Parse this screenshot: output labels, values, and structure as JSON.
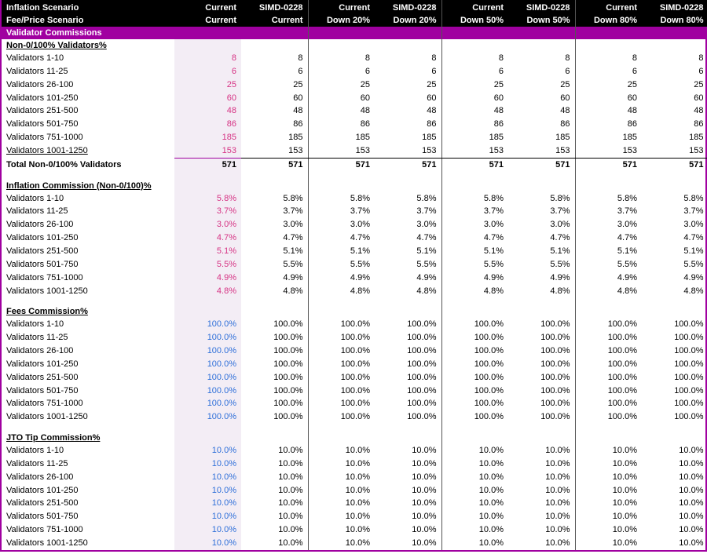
{
  "header": {
    "row1_label": "Inflation Scenario",
    "row2_label": "Fee/Price Scenario",
    "cols_top": [
      "Current",
      "SIMD-0228",
      "Current",
      "SIMD-0228",
      "Current",
      "SIMD-0228",
      "Current",
      "SIMD-0228"
    ],
    "cols_bot": [
      "Current",
      "Current",
      "Down 20%",
      "Down 20%",
      "Down 50%",
      "Down 50%",
      "Down 80%",
      "Down 80%"
    ]
  },
  "banner": "Validator Commissions",
  "validator_labels": [
    "Validators 1-10",
    "Validators 11-25",
    "Validators 26-100",
    "Validators 101-250",
    "Validators 251-500",
    "Validators 501-750",
    "Validators 751-1000",
    "Validators 1001-1250"
  ],
  "sections": [
    {
      "title": "Non-0/100% Validators%",
      "first_col_style": "pink",
      "total_label": "Total Non-0/100% Validators",
      "rows": [
        [
          8,
          8,
          8,
          8,
          8,
          8,
          8,
          8
        ],
        [
          6,
          6,
          6,
          6,
          6,
          6,
          6,
          6
        ],
        [
          25,
          25,
          25,
          25,
          25,
          25,
          25,
          25
        ],
        [
          60,
          60,
          60,
          60,
          60,
          60,
          60,
          60
        ],
        [
          48,
          48,
          48,
          48,
          48,
          48,
          48,
          48
        ],
        [
          86,
          86,
          86,
          86,
          86,
          86,
          86,
          86
        ],
        [
          185,
          185,
          185,
          185,
          185,
          185,
          185,
          185
        ],
        [
          153,
          153,
          153,
          153,
          153,
          153,
          153,
          153
        ]
      ],
      "totals": [
        571,
        571,
        571,
        571,
        571,
        571,
        571,
        571
      ]
    },
    {
      "title": "Inflation Commission (Non-0/100)%",
      "first_col_style": "pink",
      "suffix": "%",
      "decimals": 1,
      "rows": [
        [
          5.8,
          5.8,
          5.8,
          5.8,
          5.8,
          5.8,
          5.8,
          5.8
        ],
        [
          3.7,
          3.7,
          3.7,
          3.7,
          3.7,
          3.7,
          3.7,
          3.7
        ],
        [
          3.0,
          3.0,
          3.0,
          3.0,
          3.0,
          3.0,
          3.0,
          3.0
        ],
        [
          4.7,
          4.7,
          4.7,
          4.7,
          4.7,
          4.7,
          4.7,
          4.7
        ],
        [
          5.1,
          5.1,
          5.1,
          5.1,
          5.1,
          5.1,
          5.1,
          5.1
        ],
        [
          5.5,
          5.5,
          5.5,
          5.5,
          5.5,
          5.5,
          5.5,
          5.5
        ],
        [
          4.9,
          4.9,
          4.9,
          4.9,
          4.9,
          4.9,
          4.9,
          4.9
        ],
        [
          4.8,
          4.8,
          4.8,
          4.8,
          4.8,
          4.8,
          4.8,
          4.8
        ]
      ]
    },
    {
      "title": "Fees Commission%",
      "first_col_style": "blue",
      "suffix": "%",
      "decimals": 1,
      "rows": [
        [
          100,
          100,
          100,
          100,
          100,
          100,
          100,
          100
        ],
        [
          100,
          100,
          100,
          100,
          100,
          100,
          100,
          100
        ],
        [
          100,
          100,
          100,
          100,
          100,
          100,
          100,
          100
        ],
        [
          100,
          100,
          100,
          100,
          100,
          100,
          100,
          100
        ],
        [
          100,
          100,
          100,
          100,
          100,
          100,
          100,
          100
        ],
        [
          100,
          100,
          100,
          100,
          100,
          100,
          100,
          100
        ],
        [
          100,
          100,
          100,
          100,
          100,
          100,
          100,
          100
        ],
        [
          100,
          100,
          100,
          100,
          100,
          100,
          100,
          100
        ]
      ]
    },
    {
      "title": "JTO Tip Commission%",
      "first_col_style": "blue",
      "suffix": "%",
      "decimals": 1,
      "rows": [
        [
          10,
          10,
          10,
          10,
          10,
          10,
          10,
          10
        ],
        [
          10,
          10,
          10,
          10,
          10,
          10,
          10,
          10
        ],
        [
          10,
          10,
          10,
          10,
          10,
          10,
          10,
          10
        ],
        [
          10,
          10,
          10,
          10,
          10,
          10,
          10,
          10
        ],
        [
          10,
          10,
          10,
          10,
          10,
          10,
          10,
          10
        ],
        [
          10,
          10,
          10,
          10,
          10,
          10,
          10,
          10
        ],
        [
          10,
          10,
          10,
          10,
          10,
          10,
          10,
          10
        ],
        [
          10,
          10,
          10,
          10,
          10,
          10,
          10,
          10
        ]
      ]
    }
  ],
  "style": {
    "accent": "#a000a0",
    "shade_bg": "#f3edf5",
    "pink": "#d63384",
    "blue": "#2e6fd9",
    "sep_after_cols": [
      2,
      4,
      6,
      8
    ]
  }
}
